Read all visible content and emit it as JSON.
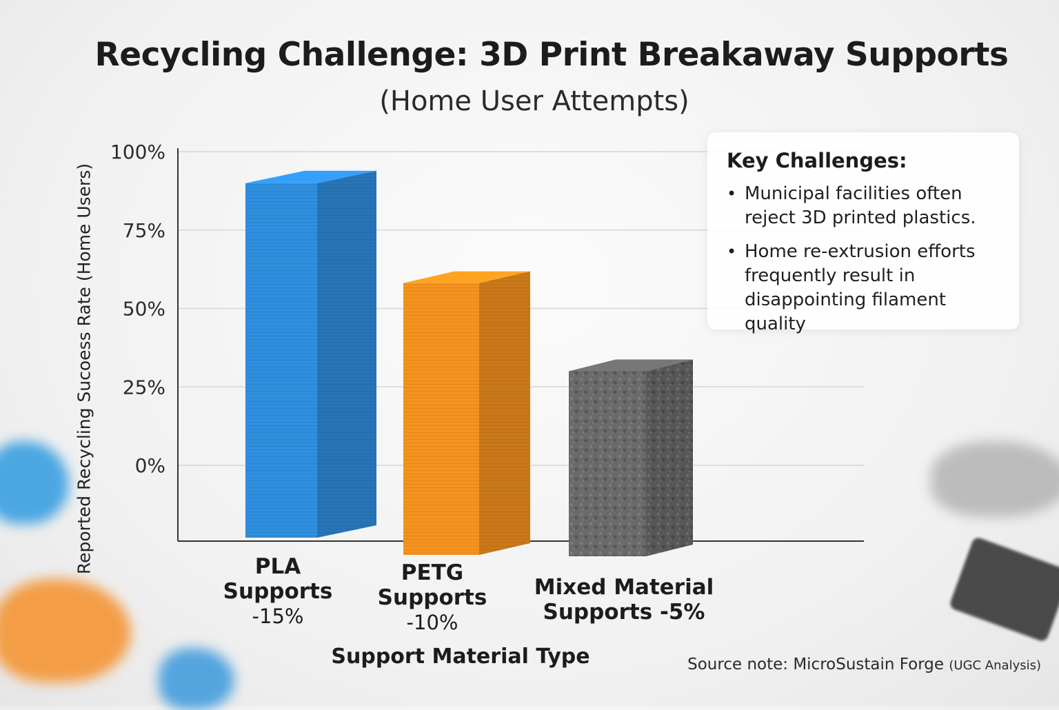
{
  "title": "Recycling Challenge: 3D Print Breakaway Supports",
  "subtitle": "(Home User Attempts)",
  "colors": {
    "pla": "#2f8fdf",
    "petg": "#f6921e",
    "mixed": "#6a6a6a",
    "gridline": "#d6d6d6",
    "axis": "#333333"
  },
  "chart_data": {
    "type": "bar",
    "title": "Recycling Challenge: 3D Print Breakaway Supports",
    "subtitle": "(Home User Attempts)",
    "ylabel": "Reported Recycling Sucoess Rate (Home Users)",
    "xlabel": "Support Material Type",
    "yticks": [
      "100%",
      "75%",
      "50%",
      "25%",
      "0%"
    ],
    "ytick_values": [
      100,
      75,
      50,
      25,
      0
    ],
    "ylim": [
      -19,
      100
    ],
    "grid": true,
    "categories": [
      {
        "line1": "PLA",
        "line2": "Supports",
        "line3": "-15%"
      },
      {
        "line1": "PETG",
        "line2": "Supports",
        "line3": "-10%"
      },
      {
        "line1": "Mixed Material",
        "line2": "Supports -5%",
        "line3": ""
      }
    ],
    "values": [
      86,
      57,
      30
    ]
  },
  "legend": {
    "title": "Key Challenges:",
    "items": [
      "Municipal facilities often reject 3D printed plastics.",
      "Home re-extrusion efforts frequently result in disappointing filament quality"
    ]
  },
  "source": {
    "main": "Source note: MicroSustain Forge",
    "note": "(UGC Analysis)"
  }
}
